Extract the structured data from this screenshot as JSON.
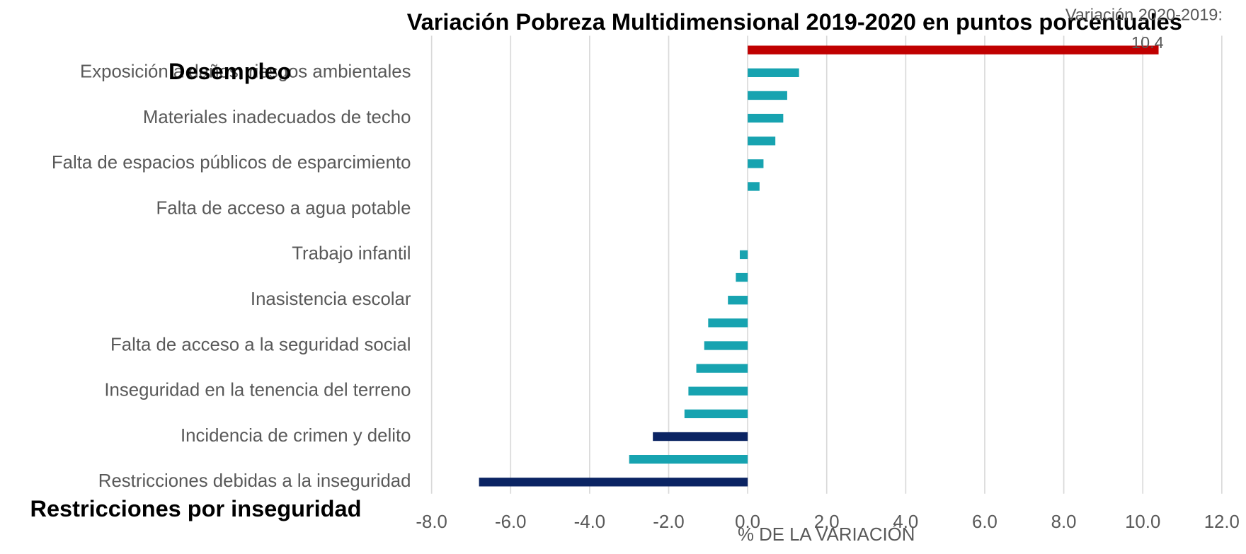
{
  "chart_data": {
    "type": "hbar",
    "title": "Variación Pobreza Multidimensional 2019-2020 en puntos porcentuales",
    "x_label": "% DE LA VARIACIÓN",
    "annotations": [
      "Desempleo",
      "Restricciones por inseguridad",
      "Variación 2020-2019:"
    ],
    "categories": [
      null,
      "Exposición a daños, riesgos ambientales",
      null,
      "Materiales inadecuados de techo",
      null,
      "Falta de espacios públicos de esparcimiento",
      null,
      "Falta de acceso a agua potable",
      null,
      "Trabajo infantil",
      null,
      "Inasistencia escolar",
      null,
      "Falta de acceso a la seguridad social",
      null,
      "Inseguridad en la tenencia del terreno",
      null,
      "Incidencia de crimen y delito",
      null,
      "Restricciones debidas a la inseguridad"
    ],
    "values": [
      10.4,
      1.3,
      1.0,
      0.9,
      0.7,
      0.4,
      0.3,
      0,
      0,
      -0.2,
      -0.3,
      -0.5,
      -1.0,
      -1.1,
      -1.3,
      -1.5,
      -1.6,
      -2.4,
      -3.0,
      -6.8
    ],
    "value_labels": [
      "10.4",
      null,
      null,
      null,
      null,
      null,
      null,
      null,
      null,
      null,
      null,
      null,
      null,
      null,
      null,
      null,
      null,
      null,
      null,
      null
    ],
    "colors": [
      "#c00000",
      "#17a3b0",
      "#17a3b0",
      "#17a3b0",
      "#17a3b0",
      "#17a3b0",
      "#17a3b0",
      "#17a3b0",
      "#17a3b0",
      "#17a3b0",
      "#17a3b0",
      "#17a3b0",
      "#17a3b0",
      "#17a3b0",
      "#17a3b0",
      "#17a3b0",
      "#17a3b0",
      "#0b2463",
      "#17a3b0",
      "#0b2463"
    ],
    "xlim": [
      -8,
      12
    ],
    "xticks": [
      {
        "value": -8,
        "label": "-8.0"
      },
      {
        "value": -6,
        "label": "-6.0"
      },
      {
        "value": -4,
        "label": "-4.0"
      },
      {
        "value": -2,
        "label": "-2.0"
      },
      {
        "value": 0,
        "label": "0.0"
      },
      {
        "value": 2,
        "label": "2.0"
      },
      {
        "value": 4,
        "label": "4.0"
      },
      {
        "value": 6,
        "label": "6.0"
      },
      {
        "value": 8,
        "label": "8.0"
      },
      {
        "value": 10,
        "label": "10.0"
      },
      {
        "value": 12,
        "label": "12.0"
      }
    ],
    "grid": true
  }
}
